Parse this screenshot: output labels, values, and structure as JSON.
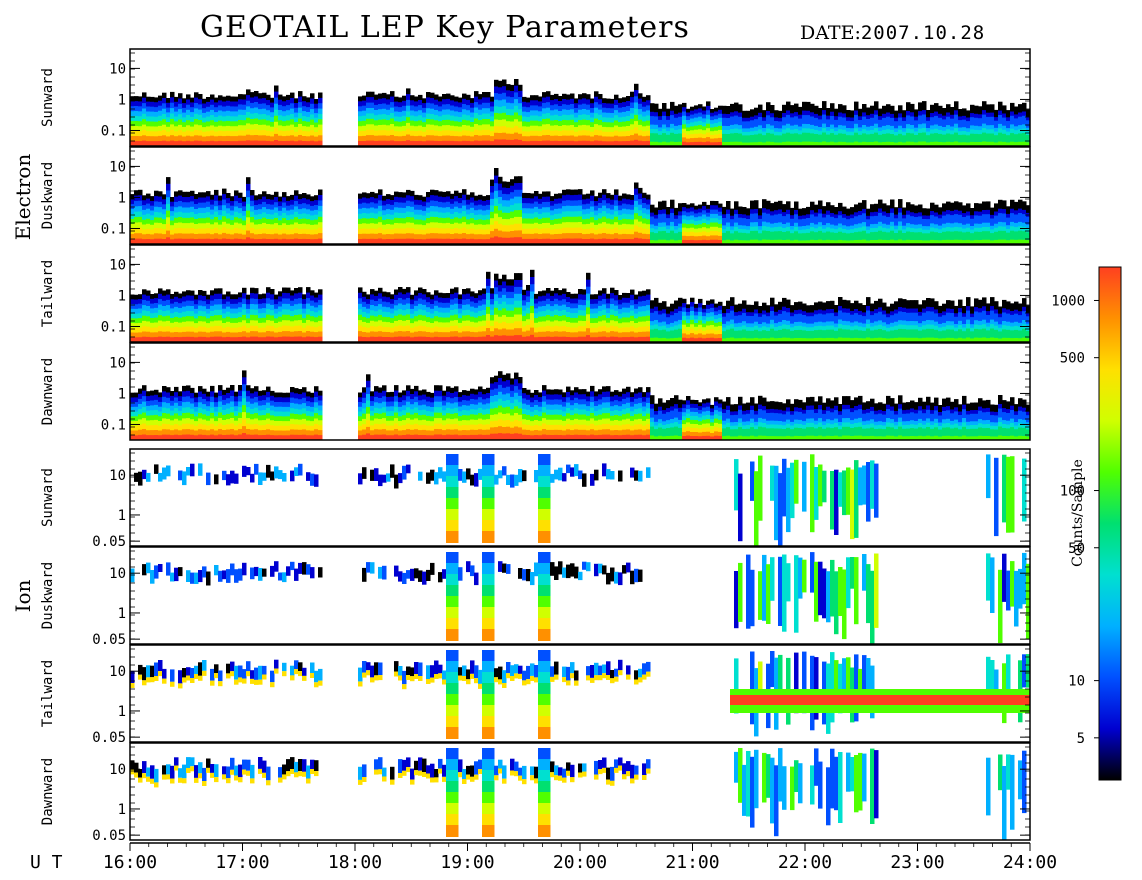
{
  "title": "GEOTAIL LEP Key Parameters",
  "date_label": "DATE:",
  "date_value": "2007.10.28",
  "groups": [
    {
      "name": "Electron",
      "panels": [
        "Sunward",
        "Duskward",
        "Tailward",
        "Dawnward"
      ]
    },
    {
      "name": "Ion",
      "panels": [
        "Sunward",
        "Duskward",
        "Tailward",
        "Dawnward"
      ]
    }
  ],
  "colorbar": {
    "title": "Counts/Sample",
    "scale": "log",
    "range": [
      3,
      1500
    ],
    "ticks": [
      {
        "label": "1000",
        "value": 1000
      },
      {
        "label": "500",
        "value": 500
      },
      {
        "label": "100",
        "value": 100
      },
      {
        "label": "50",
        "value": 50
      },
      {
        "label": "10",
        "value": 10
      },
      {
        "label": "5",
        "value": 5
      }
    ],
    "colors": [
      "#000000",
      "#0000d0",
      "#0050ff",
      "#00b0ff",
      "#00e0d0",
      "#00e070",
      "#50ff00",
      "#d0ff00",
      "#ffe000",
      "#ff9000",
      "#ff4020"
    ]
  },
  "chart_data": {
    "type": "heatmap",
    "x_axis": {
      "label": "U T",
      "range": [
        "16:00",
        "24:00"
      ],
      "ticks": [
        "16:00",
        "17:00",
        "18:00",
        "19:00",
        "20:00",
        "21:00",
        "22:00",
        "23:00",
        "24:00"
      ]
    },
    "electron_y_ticks": [
      "10",
      "1",
      "0.1"
    ],
    "ion_y_ticks": [
      "10",
      "1",
      "0.05"
    ],
    "y_scale": "log",
    "data_gaps": [
      [
        "17:41",
        "18:00"
      ]
    ],
    "panels": [
      {
        "group": "Electron",
        "direction": "Sunward",
        "events": [
          "19:20",
          "21:05"
        ]
      },
      {
        "group": "Electron",
        "direction": "Duskward",
        "events": [
          "19:20",
          "21:05"
        ]
      },
      {
        "group": "Electron",
        "direction": "Tailward",
        "events": [
          "19:20",
          "21:05"
        ]
      },
      {
        "group": "Electron",
        "direction": "Dawnward",
        "events": [
          "19:20",
          "21:05"
        ]
      },
      {
        "group": "Ion",
        "direction": "Sunward",
        "events": [
          "18:50",
          "19:10",
          "19:40",
          "21:40",
          "22:20",
          "23:55"
        ]
      },
      {
        "group": "Ion",
        "direction": "Duskward",
        "events": [
          "18:50",
          "19:10",
          "19:40",
          "21:40",
          "22:20",
          "23:55"
        ]
      },
      {
        "group": "Ion",
        "direction": "Tailward",
        "events": [
          "18:50",
          "19:10",
          "19:40",
          "21:40",
          "22:20",
          "23:55"
        ]
      },
      {
        "group": "Ion",
        "direction": "Dawnward",
        "events": [
          "18:50",
          "19:10",
          "19:40",
          "21:40",
          "22:20",
          "23:55"
        ]
      }
    ]
  }
}
